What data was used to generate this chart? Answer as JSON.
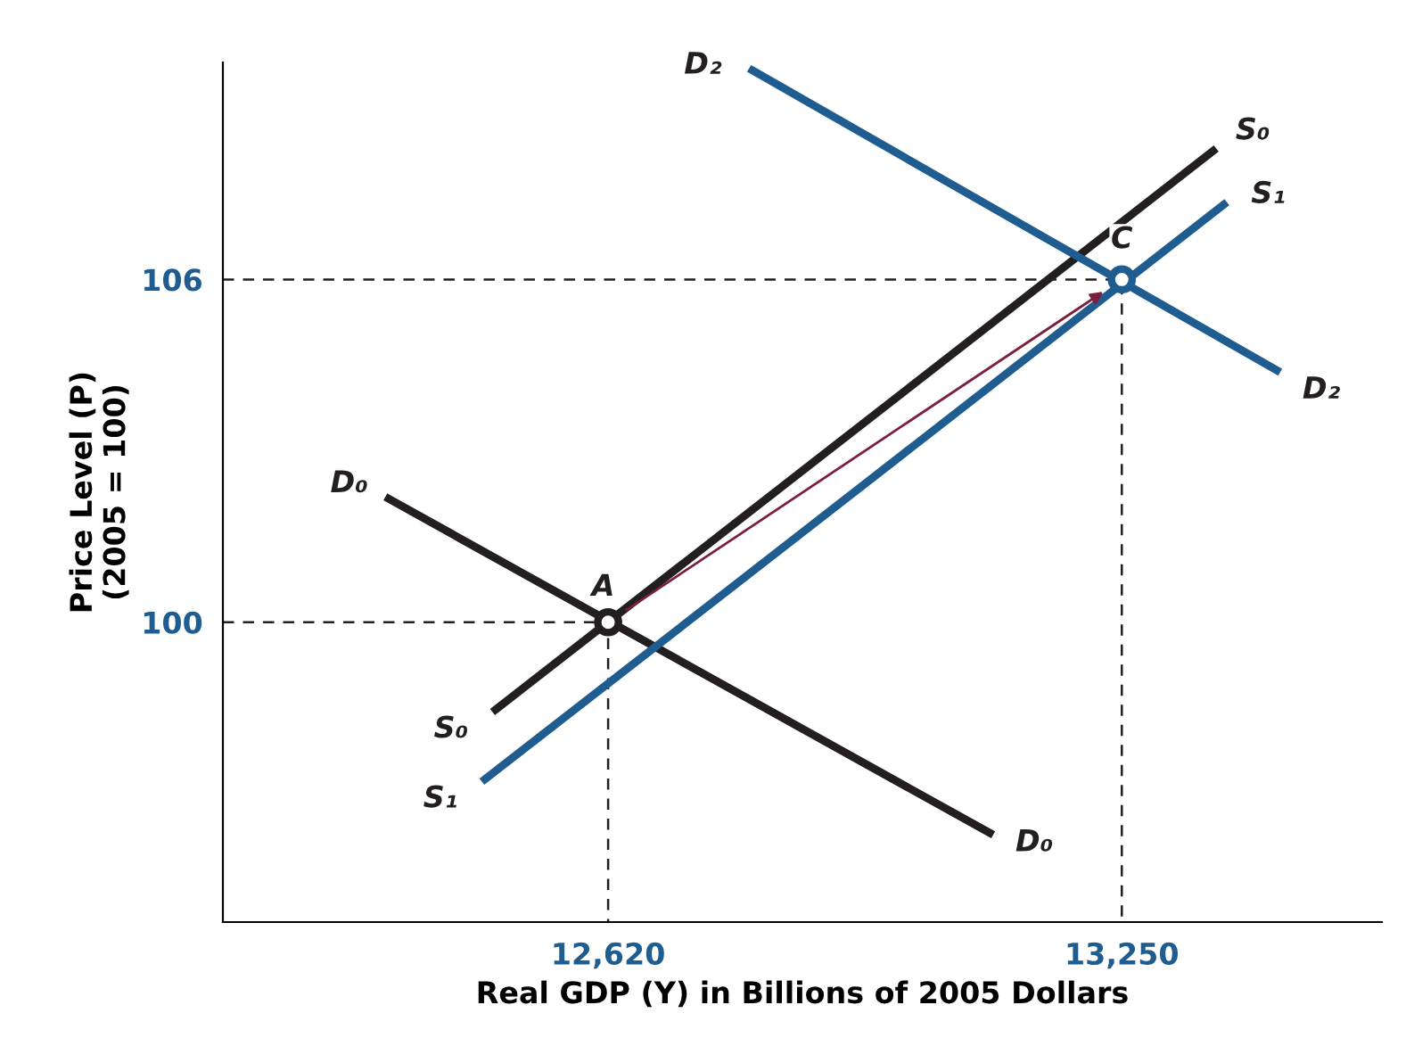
{
  "chart_data": {
    "type": "line",
    "xlabel": "Real GDP (Y) in Billions of 2005 Dollars",
    "ylabel": "Price Level (P)\n(2005 = 100)",
    "xlim": [
      12147.5,
      13569
    ],
    "ylim": [
      94.75,
      109.8
    ],
    "xticks": [
      {
        "value": 12620,
        "label": "12,620"
      },
      {
        "value": 13250,
        "label": "13,250"
      }
    ],
    "yticks": [
      100,
      106
    ],
    "grid": false,
    "legend": false,
    "series": [
      {
        "color": "#231f20",
        "x": [
          12351,
          13088
        ],
        "values": [
          102.16,
          96.31
        ],
        "line_style": "solid"
      },
      {
        "color": "#231f20",
        "x": [
          12482,
          13362
        ],
        "values": [
          98.47,
          108.25
        ],
        "line_style": "solid"
      },
      {
        "color": "#1f5c8f",
        "x": [
          12469,
          13375
        ],
        "values": [
          97.25,
          107.31
        ],
        "line_style": "solid"
      },
      {
        "color": "#1f5c8f",
        "x": [
          12797,
          13440
        ],
        "values": [
          109.66,
          104.41
        ],
        "line_style": "solid"
      },
      {
        "color": "#231f20",
        "x": [
          12147.5,
          12620,
          12620
        ],
        "values": [
          100,
          100,
          94.75
        ],
        "line_style": "dashed"
      },
      {
        "color": "#231f20",
        "x": [
          12147.5,
          13250,
          13250
        ],
        "values": [
          106,
          106,
          94.75
        ],
        "line_style": "dashed"
      },
      {
        "type": "scatter",
        "color": "#231f20",
        "x": [
          12620
        ],
        "values": [
          100
        ],
        "marker": "circle"
      },
      {
        "type": "scatter",
        "color": "#1f5c8f",
        "x": [
          13250
        ],
        "values": [
          106
        ],
        "marker": "circle"
      }
    ],
    "annotations": [
      "D₀",
      "D₀",
      "S₀",
      "S₀",
      "S₁",
      "S₁",
      "D₂",
      "D₂",
      "A",
      "C"
    ]
  }
}
